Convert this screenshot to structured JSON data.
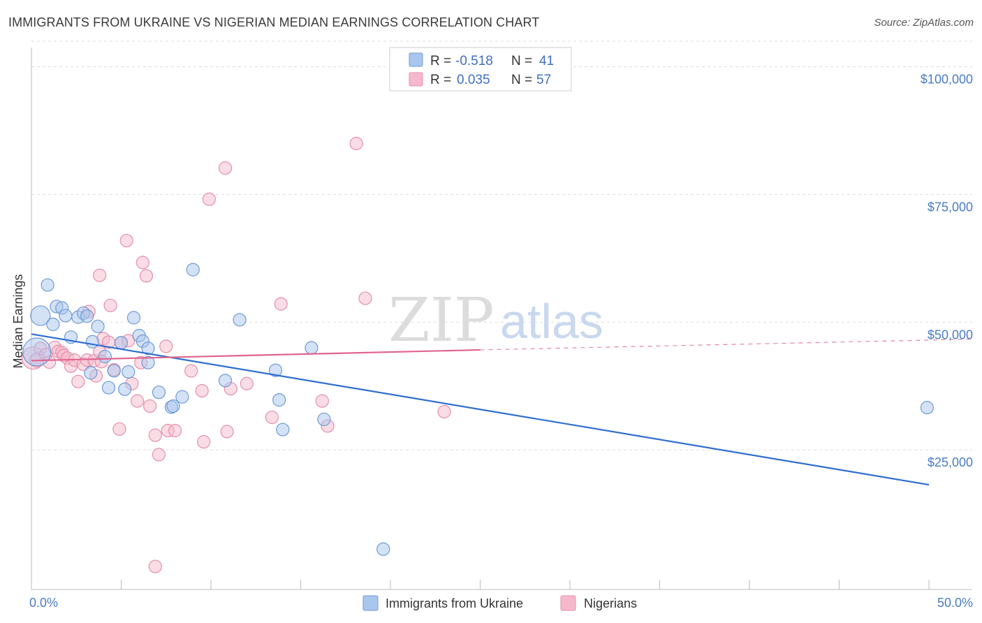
{
  "header": {
    "title": "IMMIGRANTS FROM UKRAINE VS NIGERIAN MEDIAN EARNINGS CORRELATION CHART",
    "source": "Source: ZipAtlas.com"
  },
  "watermark": {
    "zip": "ZIP",
    "atlas": "atlas"
  },
  "colors": {
    "blue_fill": "#a9c6ee",
    "blue_stroke": "#6f9ad6",
    "blue_line": "#2e6fd0",
    "pink_fill": "#f6b9cc",
    "pink_stroke": "#e58fab",
    "pink_line": "#e0648f",
    "tick_text": "#4a7cc4",
    "grid": "#dddddd"
  },
  "legend": {
    "rows": [
      {
        "r_label": "R =",
        "r_value": "-0.518",
        "n_label": "N =",
        "n_value": "41"
      },
      {
        "r_label": "R =",
        "r_value": "0.035",
        "n_label": "N =",
        "n_value": "57"
      }
    ]
  },
  "chart_data": {
    "type": "scatter",
    "title": "IMMIGRANTS FROM UKRAINE VS NIGERIAN MEDIAN EARNINGS CORRELATION CHART",
    "xlabel": "",
    "ylabel": "Median Earnings",
    "xlim": [
      0,
      50
    ],
    "ylim": [
      0,
      105000
    ],
    "x_tick_labels": [
      "0.0%",
      "50.0%"
    ],
    "y_ticks": [
      25000,
      50000,
      75000,
      100000
    ],
    "y_tick_labels": [
      "$25,000",
      "$50,000",
      "$75,000",
      "$100,000"
    ],
    "grid": true,
    "series": [
      {
        "name": "Immigrants from Ukraine",
        "color": "blue",
        "r": -0.518,
        "n": 41,
        "trend": {
          "x": [
            0,
            50
          ],
          "y": [
            50000,
            20500
          ],
          "dash_from": null
        },
        "points": [
          [
            0.3,
            46500,
            20
          ],
          [
            0.5,
            53600,
            14
          ],
          [
            0.9,
            59600,
            9
          ],
          [
            1.2,
            51900,
            9
          ],
          [
            1.4,
            55400,
            9
          ],
          [
            1.7,
            55100,
            9
          ],
          [
            1.9,
            53600,
            9
          ],
          [
            2.2,
            49400,
            9
          ],
          [
            2.6,
            53300,
            9
          ],
          [
            2.9,
            54100,
            9
          ],
          [
            3.1,
            53500,
            9
          ],
          [
            3.3,
            42400,
            9
          ],
          [
            3.4,
            48500,
            9
          ],
          [
            3.7,
            51500,
            9
          ],
          [
            4.1,
            45600,
            9
          ],
          [
            4.3,
            39500,
            9
          ],
          [
            4.6,
            42800,
            9
          ],
          [
            5.0,
            48300,
            9
          ],
          [
            5.2,
            39200,
            9
          ],
          [
            5.4,
            42600,
            9
          ],
          [
            5.7,
            53200,
            9
          ],
          [
            6.0,
            49700,
            9
          ],
          [
            6.2,
            48600,
            9
          ],
          [
            6.5,
            47200,
            9
          ],
          [
            6.5,
            44400,
            9
          ],
          [
            7.1,
            38600,
            9
          ],
          [
            7.8,
            35700,
            9
          ],
          [
            7.9,
            35900,
            9
          ],
          [
            8.4,
            37700,
            9
          ],
          [
            9.0,
            62600,
            9
          ],
          [
            10.8,
            40900,
            9
          ],
          [
            11.6,
            52800,
            9
          ],
          [
            13.6,
            42900,
            9
          ],
          [
            13.8,
            37100,
            9
          ],
          [
            14.0,
            31300,
            9
          ],
          [
            15.6,
            47300,
            9
          ],
          [
            16.3,
            33300,
            9
          ],
          [
            19.6,
            7900,
            9
          ],
          [
            49.9,
            35600,
            9
          ]
        ]
      },
      {
        "name": "Nigerians",
        "color": "pink",
        "r": 0.035,
        "n": 57,
        "trend": {
          "x": [
            0,
            50
          ],
          "y": [
            44800,
            49000
          ],
          "dash_from": 25
        },
        "points": [
          [
            0.1,
            45300,
            16
          ],
          [
            0.3,
            44900,
            10
          ],
          [
            0.5,
            47200,
            9
          ],
          [
            0.8,
            46000,
            9
          ],
          [
            1.0,
            44500,
            9
          ],
          [
            1.3,
            47400,
            9
          ],
          [
            1.5,
            46600,
            9
          ],
          [
            1.7,
            46400,
            9
          ],
          [
            1.8,
            45800,
            9
          ],
          [
            2.0,
            45300,
            9
          ],
          [
            2.2,
            43700,
            9
          ],
          [
            2.4,
            44900,
            9
          ],
          [
            2.6,
            40700,
            9
          ],
          [
            2.9,
            44100,
            9
          ],
          [
            3.1,
            44900,
            9
          ],
          [
            3.2,
            54400,
            9
          ],
          [
            3.5,
            44800,
            9
          ],
          [
            3.6,
            41800,
            9
          ],
          [
            3.8,
            46500,
            9
          ],
          [
            3.9,
            44600,
            9
          ],
          [
            3.8,
            61500,
            9
          ],
          [
            4.0,
            49100,
            9
          ],
          [
            4.3,
            48400,
            9
          ],
          [
            4.4,
            55600,
            9
          ],
          [
            4.6,
            43000,
            9
          ],
          [
            4.9,
            31400,
            9
          ],
          [
            5.0,
            48300,
            9
          ],
          [
            5.3,
            68300,
            9
          ],
          [
            5.4,
            48700,
            9
          ],
          [
            5.6,
            40300,
            9
          ],
          [
            5.9,
            36900,
            9
          ],
          [
            6.1,
            44400,
            9
          ],
          [
            6.2,
            64000,
            9
          ],
          [
            6.4,
            61400,
            9
          ],
          [
            6.6,
            35900,
            9
          ],
          [
            6.9,
            30200,
            9
          ],
          [
            7.1,
            26400,
            9
          ],
          [
            7.5,
            47600,
            9
          ],
          [
            7.6,
            31100,
            9
          ],
          [
            8.0,
            31100,
            9
          ],
          [
            8.9,
            42800,
            9
          ],
          [
            9.5,
            38900,
            9
          ],
          [
            9.6,
            28900,
            9
          ],
          [
            9.9,
            76400,
            9
          ],
          [
            10.8,
            82500,
            9
          ],
          [
            10.9,
            30900,
            9
          ],
          [
            11.1,
            39300,
            9
          ],
          [
            12.0,
            40300,
            9
          ],
          [
            13.4,
            33700,
            9
          ],
          [
            13.9,
            55900,
            9
          ],
          [
            16.2,
            36900,
            9
          ],
          [
            16.5,
            32000,
            9
          ],
          [
            18.1,
            87300,
            9
          ],
          [
            18.6,
            57000,
            9
          ],
          [
            23.0,
            34800,
            9
          ],
          [
            6.9,
            4500,
            9
          ]
        ]
      }
    ]
  },
  "bottom_legend": [
    {
      "label": "Immigrants from Ukraine"
    },
    {
      "label": "Nigerians"
    }
  ]
}
